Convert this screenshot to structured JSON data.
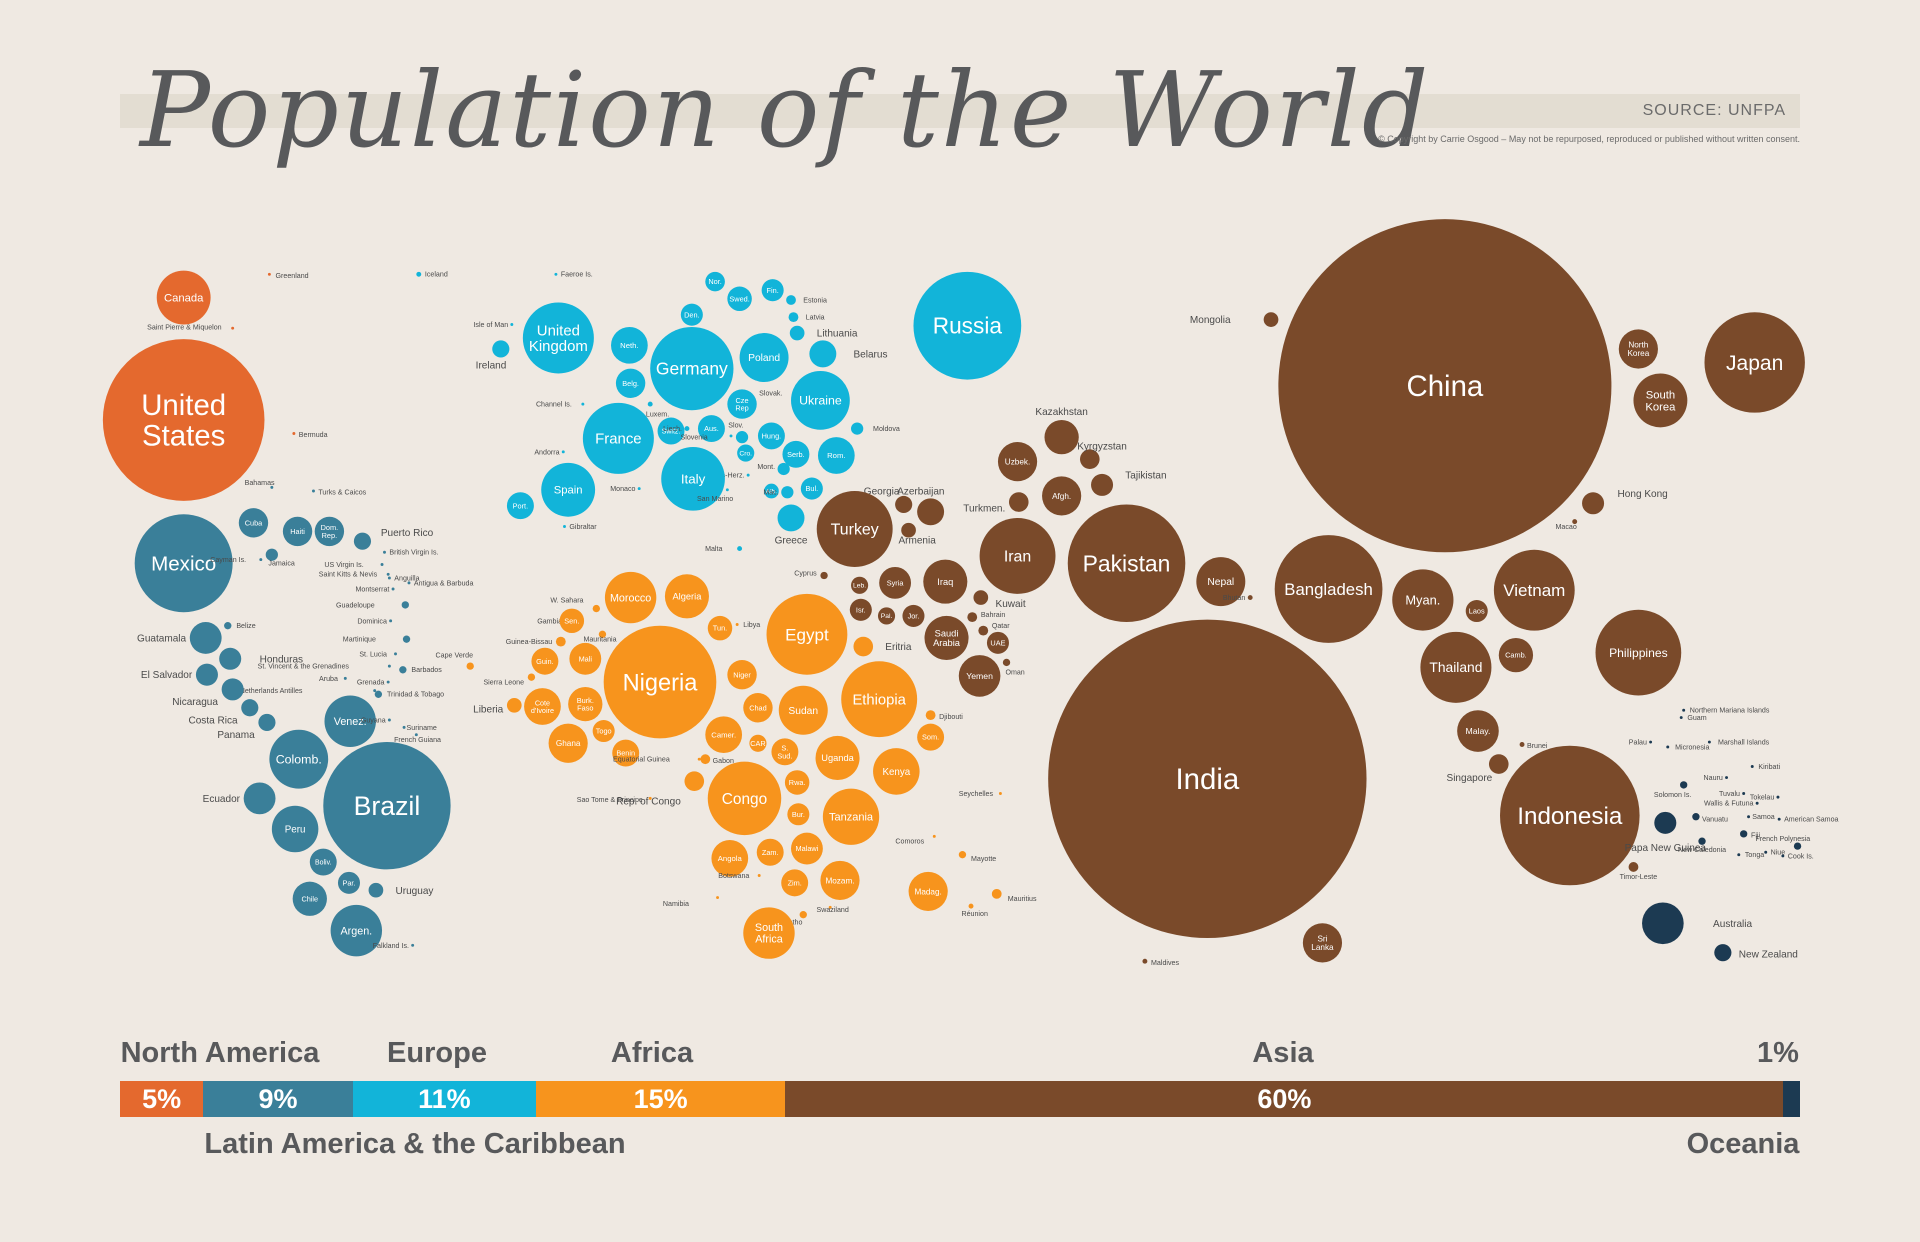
{
  "header": {
    "title": "Population of the World",
    "source": "SOURCE: UNFPA",
    "copyright": "© Copyright by Carrie Osgood – May not be repurposed, reproduced or published without written consent."
  },
  "colors": {
    "North America": "#e4692e",
    "Latin America & the Caribbean": "#3a7f99",
    "Europe": "#12b4d9",
    "Africa": "#f7941d",
    "Asia": "#7a4a2a",
    "Oceania": "#1c3a52"
  },
  "chart_data": {
    "type": "bubble",
    "title": "Population of the World",
    "region_shares": [
      {
        "region": "North America",
        "percent": 5,
        "label": "5%"
      },
      {
        "region": "Latin America & the Caribbean",
        "percent": 9,
        "label": "9%"
      },
      {
        "region": "Europe",
        "percent": 11,
        "label": "11%"
      },
      {
        "region": "Africa",
        "percent": 15,
        "label": "15%"
      },
      {
        "region": "Asia",
        "percent": 60,
        "label": "60%"
      },
      {
        "region": "Oceania",
        "percent": 1,
        "label": "1%"
      }
    ],
    "regions_top_labels": [
      "North America",
      "Europe",
      "Africa",
      "Asia",
      "1%"
    ],
    "regions_bottom_labels": [
      "Latin America & the Caribbean",
      "Oceania"
    ],
    "countries": [
      {
        "name": "Canada",
        "region": "North America"
      },
      {
        "name": "United States",
        "region": "North America"
      },
      {
        "name": "Greenland",
        "region": "North America"
      },
      {
        "name": "Saint Pierre & Miquelon",
        "region": "North America"
      },
      {
        "name": "Bermuda",
        "region": "North America"
      },
      {
        "name": "Mexico",
        "region": "Latin America & the Caribbean"
      },
      {
        "name": "Bahamas",
        "region": "Latin America & the Caribbean"
      },
      {
        "name": "Turks & Caicos",
        "region": "Latin America & the Caribbean"
      },
      {
        "name": "Cuba",
        "region": "Latin America & the Caribbean"
      },
      {
        "name": "Haiti",
        "region": "Latin America & the Caribbean"
      },
      {
        "name": "Dom. Rep.",
        "region": "Latin America & the Caribbean"
      },
      {
        "name": "Puerto Rico",
        "region": "Latin America & the Caribbean"
      },
      {
        "name": "Jamaica",
        "region": "Latin America & the Caribbean"
      },
      {
        "name": "Cayman Is.",
        "region": "Latin America & the Caribbean"
      },
      {
        "name": "British Virgin Is.",
        "region": "Latin America & the Caribbean"
      },
      {
        "name": "US Virgin Is.",
        "region": "Latin America & the Caribbean"
      },
      {
        "name": "Anguilla",
        "region": "Latin America & the Caribbean"
      },
      {
        "name": "Saint Kitts & Nevis",
        "region": "Latin America & the Caribbean"
      },
      {
        "name": "Antigua & Barbuda",
        "region": "Latin America & the Caribbean"
      },
      {
        "name": "Montserrat",
        "region": "Latin America & the Caribbean"
      },
      {
        "name": "Guadeloupe",
        "region": "Latin America & the Caribbean"
      },
      {
        "name": "Dominica",
        "region": "Latin America & the Caribbean"
      },
      {
        "name": "Martinique",
        "region": "Latin America & the Caribbean"
      },
      {
        "name": "St. Lucia",
        "region": "Latin America & the Caribbean"
      },
      {
        "name": "Barbados",
        "region": "Latin America & the Caribbean"
      },
      {
        "name": "St. Vincent & the Grenadines",
        "region": "Latin America & the Caribbean"
      },
      {
        "name": "Aruba",
        "region": "Latin America & the Caribbean"
      },
      {
        "name": "Grenada",
        "region": "Latin America & the Caribbean"
      },
      {
        "name": "Netherlands Antilles",
        "region": "Latin America & the Caribbean"
      },
      {
        "name": "Trinidad & Tobago",
        "region": "Latin America & the Caribbean"
      },
      {
        "name": "Belize",
        "region": "Latin America & the Caribbean"
      },
      {
        "name": "Guatamala",
        "region": "Latin America & the Caribbean"
      },
      {
        "name": "Honduras",
        "region": "Latin America & the Caribbean"
      },
      {
        "name": "El Salvador",
        "region": "Latin America & the Caribbean"
      },
      {
        "name": "Nicaragua",
        "region": "Latin America & the Caribbean"
      },
      {
        "name": "Costa Rica",
        "region": "Latin America & the Caribbean"
      },
      {
        "name": "Panama",
        "region": "Latin America & the Caribbean"
      },
      {
        "name": "Venez.",
        "region": "Latin America & the Caribbean"
      },
      {
        "name": "Guyana",
        "region": "Latin America & the Caribbean"
      },
      {
        "name": "Suriname",
        "region": "Latin America & the Caribbean"
      },
      {
        "name": "French Guiana",
        "region": "Latin America & the Caribbean"
      },
      {
        "name": "Colomb.",
        "region": "Latin America & the Caribbean"
      },
      {
        "name": "Brazil",
        "region": "Latin America & the Caribbean"
      },
      {
        "name": "Ecuador",
        "region": "Latin America & the Caribbean"
      },
      {
        "name": "Peru",
        "region": "Latin America & the Caribbean"
      },
      {
        "name": "Boliv.",
        "region": "Latin America & the Caribbean"
      },
      {
        "name": "Par.",
        "region": "Latin America & the Caribbean"
      },
      {
        "name": "Uruguay",
        "region": "Latin America & the Caribbean"
      },
      {
        "name": "Chile",
        "region": "Latin America & the Caribbean"
      },
      {
        "name": "Argen.",
        "region": "Latin America & the Caribbean"
      },
      {
        "name": "Falkland Is.",
        "region": "Latin America & the Caribbean"
      },
      {
        "name": "Iceland",
        "region": "Europe"
      },
      {
        "name": "Faeroe Is.",
        "region": "Europe"
      },
      {
        "name": "United Kingdom",
        "region": "Europe"
      },
      {
        "name": "Isle of Man",
        "region": "Europe"
      },
      {
        "name": "Ireland",
        "region": "Europe"
      },
      {
        "name": "Nor.",
        "region": "Europe"
      },
      {
        "name": "Swed.",
        "region": "Europe"
      },
      {
        "name": "Fin.",
        "region": "Europe"
      },
      {
        "name": "Estonia",
        "region": "Europe"
      },
      {
        "name": "Latvia",
        "region": "Europe"
      },
      {
        "name": "Lithuania",
        "region": "Europe"
      },
      {
        "name": "Den.",
        "region": "Europe"
      },
      {
        "name": "Neth.",
        "region": "Europe"
      },
      {
        "name": "Belg.",
        "region": "Europe"
      },
      {
        "name": "Luxem.",
        "region": "Europe"
      },
      {
        "name": "Germany",
        "region": "Europe"
      },
      {
        "name": "Poland",
        "region": "Europe"
      },
      {
        "name": "Belarus",
        "region": "Europe"
      },
      {
        "name": "Ukraine",
        "region": "Europe"
      },
      {
        "name": "Moldova",
        "region": "Europe"
      },
      {
        "name": "Channel Is.",
        "region": "Europe"
      },
      {
        "name": "France",
        "region": "Europe"
      },
      {
        "name": "Switz.",
        "region": "Europe"
      },
      {
        "name": "Liech.",
        "region": "Europe"
      },
      {
        "name": "Aus.",
        "region": "Europe"
      },
      {
        "name": "Cze. Rep.",
        "region": "Europe"
      },
      {
        "name": "Slovak.",
        "region": "Europe"
      },
      {
        "name": "Hung.",
        "region": "Europe"
      },
      {
        "name": "Slov.",
        "region": "Europe"
      },
      {
        "name": "Slovenia",
        "region": "Europe"
      },
      {
        "name": "Cro.",
        "region": "Europe"
      },
      {
        "name": "Bos-Herz.",
        "region": "Europe"
      },
      {
        "name": "Serb.",
        "region": "Europe"
      },
      {
        "name": "Rom.",
        "region": "Europe"
      },
      {
        "name": "Mont.",
        "region": "Europe"
      },
      {
        "name": "Alb.",
        "region": "Europe"
      },
      {
        "name": "Mac.",
        "region": "Europe"
      },
      {
        "name": "Bul.",
        "region": "Europe"
      },
      {
        "name": "Greece",
        "region": "Europe"
      },
      {
        "name": "Italy",
        "region": "Europe"
      },
      {
        "name": "San Marino",
        "region": "Europe"
      },
      {
        "name": "Monaco",
        "region": "Europe"
      },
      {
        "name": "Andorra",
        "region": "Europe"
      },
      {
        "name": "Spain",
        "region": "Europe"
      },
      {
        "name": "Port.",
        "region": "Europe"
      },
      {
        "name": "Gibraltar",
        "region": "Europe"
      },
      {
        "name": "Malta",
        "region": "Europe"
      },
      {
        "name": "Russia",
        "region": "Europe"
      },
      {
        "name": "Morocco",
        "region": "Africa"
      },
      {
        "name": "Algeria",
        "region": "Africa"
      },
      {
        "name": "W. Sahara",
        "region": "Africa"
      },
      {
        "name": "Tun.",
        "region": "Africa"
      },
      {
        "name": "Libya",
        "region": "Africa"
      },
      {
        "name": "Egypt",
        "region": "Africa"
      },
      {
        "name": "Gambia",
        "region": "Africa"
      },
      {
        "name": "Sen.",
        "region": "Africa"
      },
      {
        "name": "Mauritania",
        "region": "Africa"
      },
      {
        "name": "Guinea-Bissau",
        "region": "Africa"
      },
      {
        "name": "Guin.",
        "region": "Africa"
      },
      {
        "name": "Mali",
        "region": "Africa"
      },
      {
        "name": "Nigeria",
        "region": "Africa"
      },
      {
        "name": "Niger",
        "region": "Africa"
      },
      {
        "name": "Eritria",
        "region": "Africa"
      },
      {
        "name": "Ethiopia",
        "region": "Africa"
      },
      {
        "name": "Cape Verde",
        "region": "Africa"
      },
      {
        "name": "Sierra Leone",
        "region": "Africa"
      },
      {
        "name": "Liberia",
        "region": "Africa"
      },
      {
        "name": "Cote d'Ivoire",
        "region": "Africa"
      },
      {
        "name": "Burk. Faso",
        "region": "Africa"
      },
      {
        "name": "Chad",
        "region": "Africa"
      },
      {
        "name": "Sudan",
        "region": "Africa"
      },
      {
        "name": "Djibouti",
        "region": "Africa"
      },
      {
        "name": "Ghana",
        "region": "Africa"
      },
      {
        "name": "Togo",
        "region": "Africa"
      },
      {
        "name": "Benin",
        "region": "Africa"
      },
      {
        "name": "Camer.",
        "region": "Africa"
      },
      {
        "name": "CAR",
        "region": "Africa"
      },
      {
        "name": "S. Sud.",
        "region": "Africa"
      },
      {
        "name": "Uganda",
        "region": "Africa"
      },
      {
        "name": "Som.",
        "region": "Africa"
      },
      {
        "name": "Kenya",
        "region": "Africa"
      },
      {
        "name": "Equatorial Guinea",
        "region": "Africa"
      },
      {
        "name": "Gabon",
        "region": "Africa"
      },
      {
        "name": "Rep. of Congo",
        "region": "Africa"
      },
      {
        "name": "Sao Tome & Principe",
        "region": "Africa"
      },
      {
        "name": "Congo",
        "region": "Africa"
      },
      {
        "name": "Rwa.",
        "region": "Africa"
      },
      {
        "name": "Bur.",
        "region": "Africa"
      },
      {
        "name": "Tanzania",
        "region": "Africa"
      },
      {
        "name": "Seychelles",
        "region": "Africa"
      },
      {
        "name": "Angola",
        "region": "Africa"
      },
      {
        "name": "Zam.",
        "region": "Africa"
      },
      {
        "name": "Malawi",
        "region": "Africa"
      },
      {
        "name": "Comoros",
        "region": "Africa"
      },
      {
        "name": "Mayotte",
        "region": "Africa"
      },
      {
        "name": "Botswana",
        "region": "Africa"
      },
      {
        "name": "Zim.",
        "region": "Africa"
      },
      {
        "name": "Mozam.",
        "region": "Africa"
      },
      {
        "name": "Madag.",
        "region": "Africa"
      },
      {
        "name": "Mauritius",
        "region": "Africa"
      },
      {
        "name": "Namibia",
        "region": "Africa"
      },
      {
        "name": "Lesotho",
        "region": "Africa"
      },
      {
        "name": "Swaziland",
        "region": "Africa"
      },
      {
        "name": "Réunion",
        "region": "Africa"
      },
      {
        "name": "South Africa",
        "region": "Africa"
      },
      {
        "name": "Kazakhstan",
        "region": "Asia"
      },
      {
        "name": "Uzbek.",
        "region": "Asia"
      },
      {
        "name": "Kyrgyzstan",
        "region": "Asia"
      },
      {
        "name": "Tajikistan",
        "region": "Asia"
      },
      {
        "name": "Afgh.",
        "region": "Asia"
      },
      {
        "name": "Turkmen.",
        "region": "Asia"
      },
      {
        "name": "Georgia",
        "region": "Asia"
      },
      {
        "name": "Azerbaijan",
        "region": "Asia"
      },
      {
        "name": "Armenia",
        "region": "Asia"
      },
      {
        "name": "Turkey",
        "region": "Asia"
      },
      {
        "name": "Cyprus",
        "region": "Asia"
      },
      {
        "name": "Leb.",
        "region": "Asia"
      },
      {
        "name": "Syria",
        "region": "Asia"
      },
      {
        "name": "Iraq",
        "region": "Asia"
      },
      {
        "name": "Iran",
        "region": "Asia"
      },
      {
        "name": "Isr.",
        "region": "Asia"
      },
      {
        "name": "Pal.",
        "region": "Asia"
      },
      {
        "name": "Jor.",
        "region": "Asia"
      },
      {
        "name": "Kuwait",
        "region": "Asia"
      },
      {
        "name": "Bahrain",
        "region": "Asia"
      },
      {
        "name": "Qatar",
        "region": "Asia"
      },
      {
        "name": "Saudi Arabia",
        "region": "Asia"
      },
      {
        "name": "UAE",
        "region": "Asia"
      },
      {
        "name": "Oman",
        "region": "Asia"
      },
      {
        "name": "Yemen",
        "region": "Asia"
      },
      {
        "name": "Pakistan",
        "region": "Asia"
      },
      {
        "name": "Nepal",
        "region": "Asia"
      },
      {
        "name": "Bhutan",
        "region": "Asia"
      },
      {
        "name": "Bangladesh",
        "region": "Asia"
      },
      {
        "name": "India",
        "region": "Asia"
      },
      {
        "name": "Maldives",
        "region": "Asia"
      },
      {
        "name": "Sri Lanka",
        "region": "Asia"
      },
      {
        "name": "Mongolia",
        "region": "Asia"
      },
      {
        "name": "China",
        "region": "Asia"
      },
      {
        "name": "North Korea",
        "region": "Asia"
      },
      {
        "name": "South Korea",
        "region": "Asia"
      },
      {
        "name": "Japan",
        "region": "Asia"
      },
      {
        "name": "Hong Kong",
        "region": "Asia"
      },
      {
        "name": "Macao",
        "region": "Asia"
      },
      {
        "name": "Myan.",
        "region": "Asia"
      },
      {
        "name": "Laos",
        "region": "Asia"
      },
      {
        "name": "Vietnam",
        "region": "Asia"
      },
      {
        "name": "Thailand",
        "region": "Asia"
      },
      {
        "name": "Camb.",
        "region": "Asia"
      },
      {
        "name": "Philippines",
        "region": "Asia"
      },
      {
        "name": "Malay.",
        "region": "Asia"
      },
      {
        "name": "Brunei",
        "region": "Asia"
      },
      {
        "name": "Singapore",
        "region": "Asia"
      },
      {
        "name": "Indonesia",
        "region": "Asia"
      },
      {
        "name": "Timor-Leste",
        "region": "Asia"
      },
      {
        "name": "Papa New Guinea",
        "region": "Oceania"
      },
      {
        "name": "Solomon Is.",
        "region": "Oceania"
      },
      {
        "name": "Vanuatu",
        "region": "Oceania"
      },
      {
        "name": "New Caledonia",
        "region": "Oceania"
      },
      {
        "name": "Fiji",
        "region": "Oceania"
      },
      {
        "name": "French Polynesia",
        "region": "Oceania"
      },
      {
        "name": "Australia",
        "region": "Oceania"
      },
      {
        "name": "New Zealand",
        "region": "Oceania"
      },
      {
        "name": "Northern Mariana Islands",
        "region": "Oceania"
      },
      {
        "name": "Guam",
        "region": "Oceania"
      },
      {
        "name": "Palau",
        "region": "Oceania"
      },
      {
        "name": "Micronesia",
        "region": "Oceania"
      },
      {
        "name": "Marshall Islands",
        "region": "Oceania"
      },
      {
        "name": "Nauru",
        "region": "Oceania"
      },
      {
        "name": "Kiribati",
        "region": "Oceania"
      },
      {
        "name": "Tuvalu",
        "region": "Oceania"
      },
      {
        "name": "Tokelau",
        "region": "Oceania"
      },
      {
        "name": "Wallis & Futuna",
        "region": "Oceania"
      },
      {
        "name": "Samoa",
        "region": "Oceania"
      },
      {
        "name": "American Samoa",
        "region": "Oceania"
      },
      {
        "name": "Tonga",
        "region": "Oceania"
      },
      {
        "name": "Niue",
        "region": "Oceania"
      },
      {
        "name": "Cook Is.",
        "region": "Oceania"
      }
    ]
  }
}
